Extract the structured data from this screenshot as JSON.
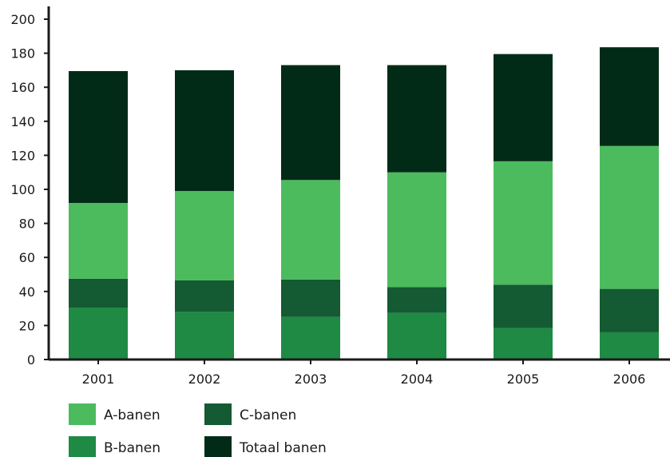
{
  "chart_data": {
    "type": "bar",
    "stacked": true,
    "title": "",
    "xlabel": "",
    "ylabel": "",
    "ylim": [
      0,
      200
    ],
    "yticks": [
      0,
      20,
      40,
      60,
      80,
      100,
      120,
      140,
      160,
      180,
      200
    ],
    "categories": [
      "2001",
      "2002",
      "2003",
      "2004",
      "2005",
      "2006"
    ],
    "grid": false,
    "legend_position": "bottom-left",
    "series": [
      {
        "name": "B-banen",
        "color": "#1e8a44",
        "values": [
          30.5,
          28,
          25,
          27.5,
          18.5,
          16
        ]
      },
      {
        "name": "C-banen",
        "color": "#145a32",
        "values": [
          17,
          18.5,
          22,
          15,
          25.5,
          25.5
        ]
      },
      {
        "name": "A-banen",
        "color": "#4cbb5e",
        "values": [
          44.5,
          52.5,
          58.5,
          67.5,
          72.5,
          84
        ]
      },
      {
        "name": "Totaal banen",
        "color": "#022b17",
        "values": [
          77.5,
          71,
          67.5,
          63,
          63,
          58
        ]
      }
    ],
    "legend_order": [
      "A-banen",
      "C-banen",
      "B-banen",
      "Totaal banen"
    ]
  }
}
